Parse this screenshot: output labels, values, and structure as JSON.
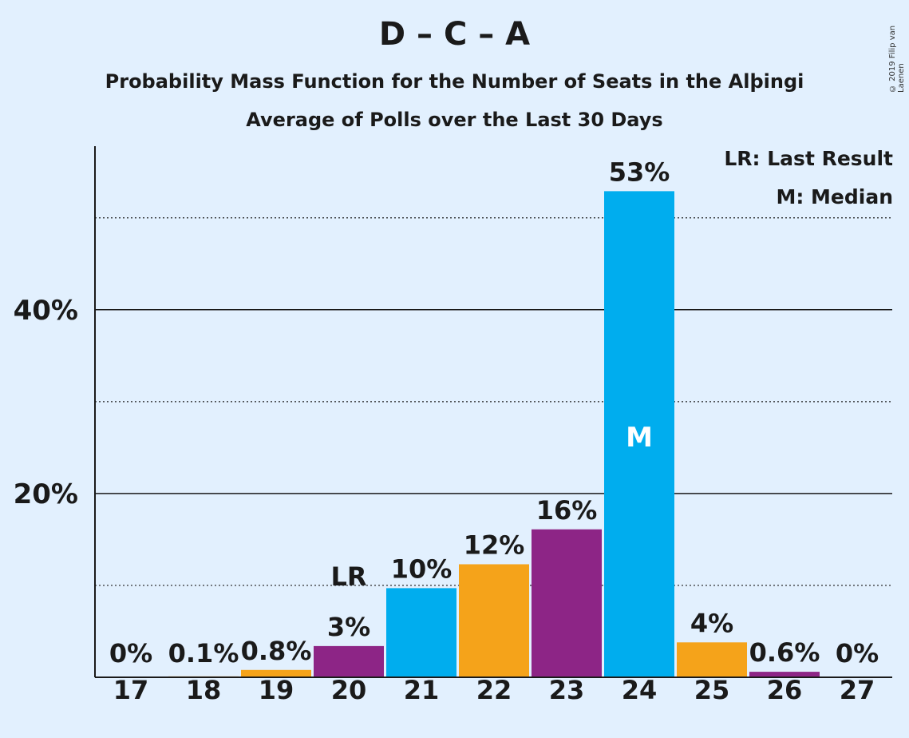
{
  "title": "D – C – A",
  "subtitle1": "Probability Mass Function for the Number of Seats in the Alþingi",
  "subtitle2": "Average of Polls over the Last 30 Days",
  "copyright": "© 2019 Filip van Laenen",
  "legend": {
    "lr": "LR: Last Result",
    "m": "M: Median"
  },
  "colors": {
    "blue": "#00adee",
    "orange": "#f5a31a",
    "purple": "#8d2586",
    "background": "#e2f0fe"
  },
  "chart_data": {
    "type": "bar",
    "categories": [
      "17",
      "18",
      "19",
      "20",
      "21",
      "22",
      "23",
      "24",
      "25",
      "26",
      "27"
    ],
    "values": [
      0,
      0.1,
      0.8,
      3.4,
      9.7,
      12.3,
      16.1,
      52.9,
      3.8,
      0.6,
      0
    ],
    "labels": [
      "0%",
      "0.1%",
      "0.8%",
      "3%",
      "10%",
      "12%",
      "16%",
      "53%",
      "4%",
      "0.6%",
      "0%"
    ],
    "bar_colors": [
      "blue",
      "orange",
      "orange",
      "purple",
      "blue",
      "orange",
      "purple",
      "blue",
      "orange",
      "purple",
      "blue"
    ],
    "last_result_index": 3,
    "last_result_label": "LR",
    "median_index": 7,
    "median_label": "M",
    "yticks": [
      20,
      40
    ],
    "ytick_labels": [
      "20%",
      "40%"
    ],
    "minor_gridlines": [
      10,
      30,
      50
    ],
    "ylim": [
      0,
      57.8
    ],
    "grid": true
  }
}
